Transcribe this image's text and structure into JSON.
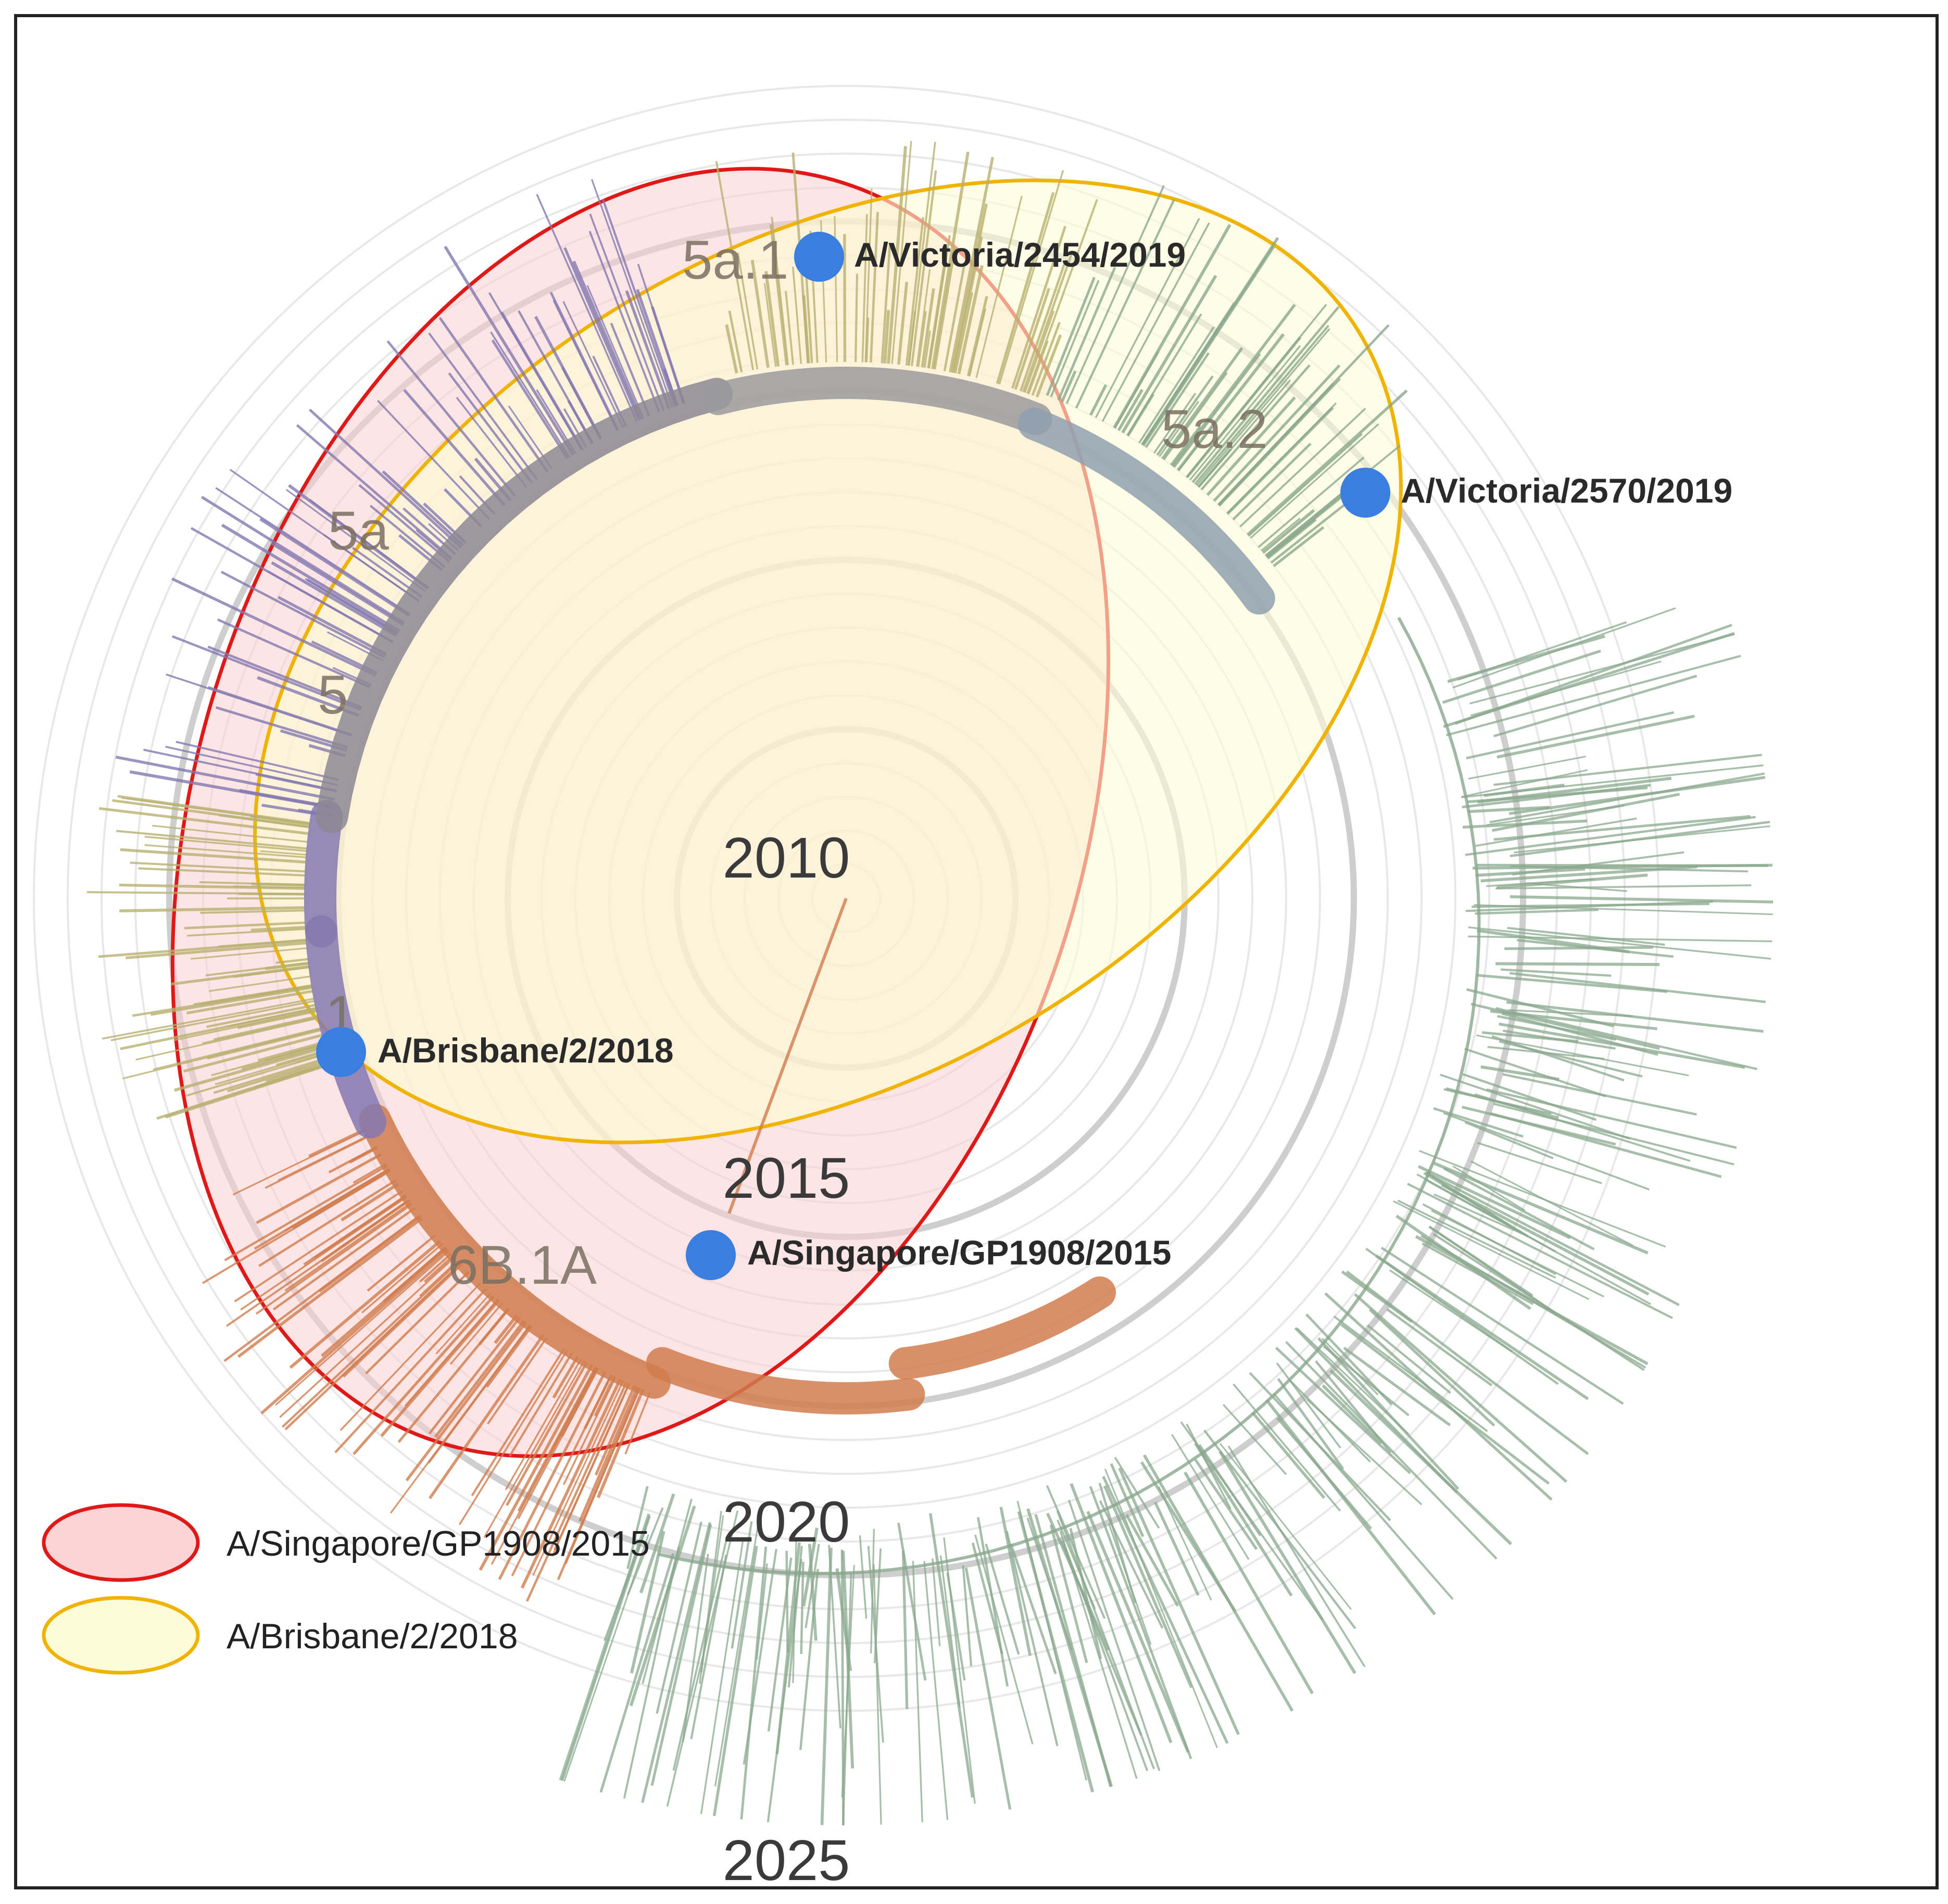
{
  "years": [
    "2010",
    "2015",
    "2020",
    "2025"
  ],
  "clades": [
    "5a.1",
    "5a.2",
    "5a",
    "5",
    "1",
    "6B.1A"
  ],
  "strains": [
    "A/Victoria/2454/2019",
    "A/Victoria/2570/2019",
    "A/Brisbane/2/2018",
    "A/Singapore/GP1908/2015"
  ],
  "legend": [
    {
      "label": "A/Singapore/GP1908/2015",
      "stroke": "#e01818",
      "fill": "#fbd5d5"
    },
    {
      "label": "A/Brisbane/2/2018",
      "stroke": "#f0b400",
      "fill": "#fdfbd8"
    }
  ],
  "colors": {
    "marker": "#3a7fe0",
    "ring": "#d9d9d9",
    "ring_major": "#bdbdbd",
    "branch_green": "#8aa88d",
    "branch_orange": "#d07c4e",
    "branch_purple": "#8378b0",
    "branch_olive": "#b8b070"
  }
}
